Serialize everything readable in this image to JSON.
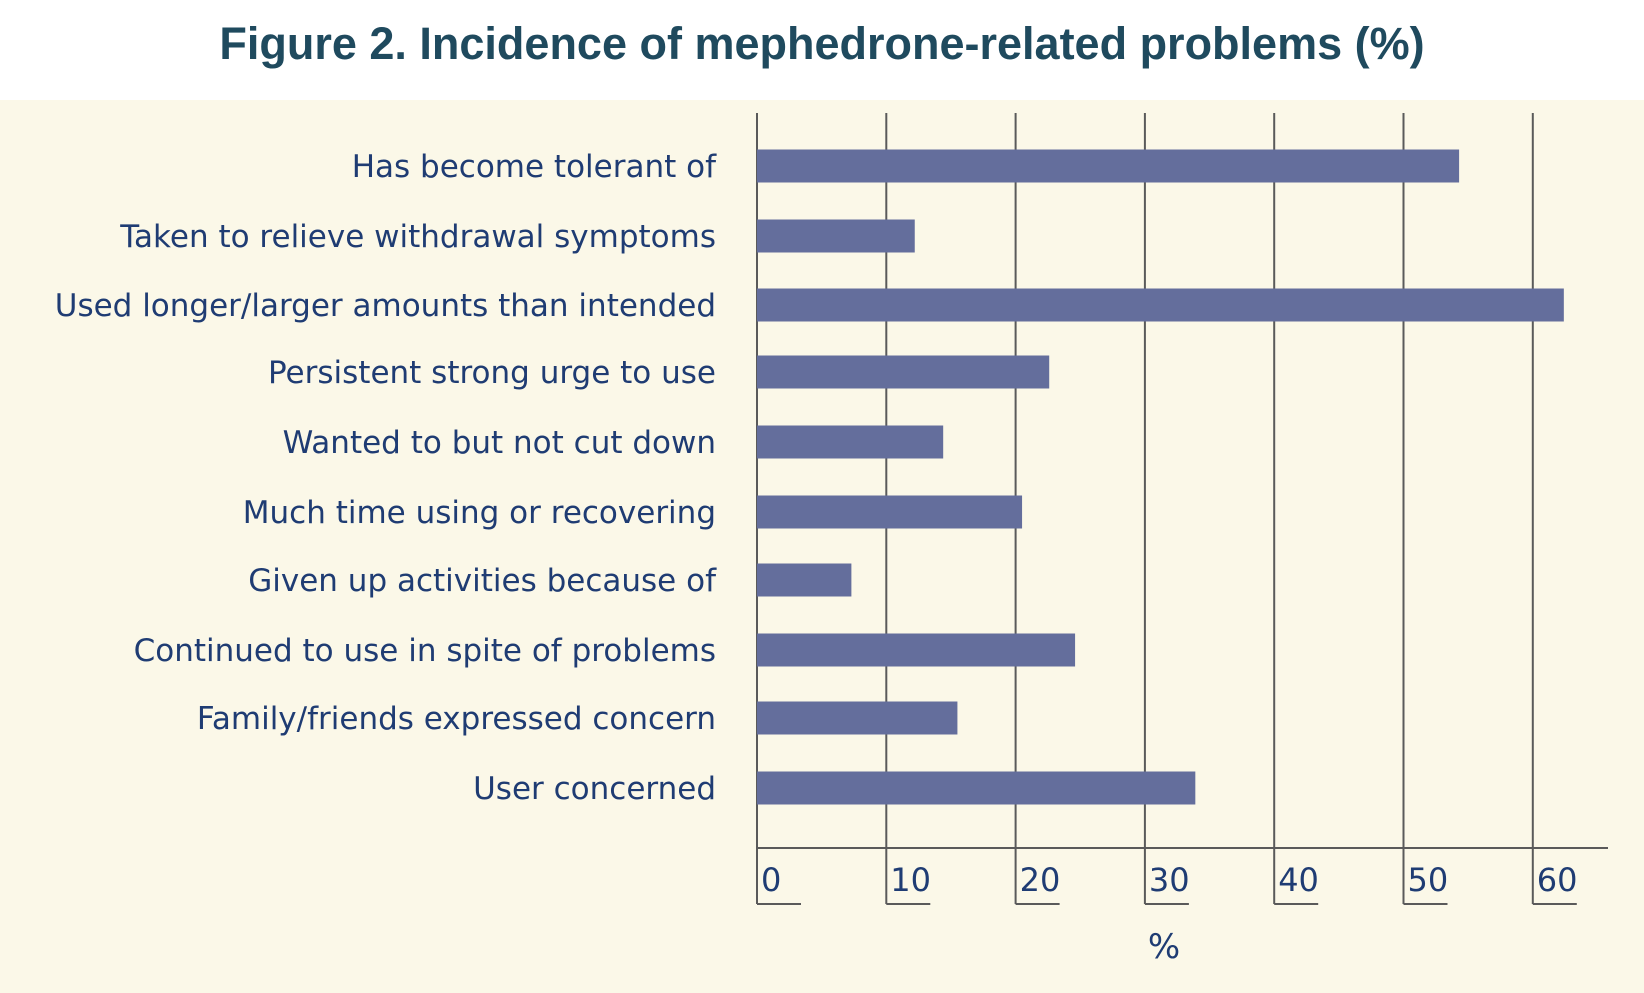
{
  "chart_data": {
    "type": "bar",
    "orientation": "horizontal",
    "title": "Figure 2. Incidence of mephedrone-related problems (%)",
    "xlabel": "%",
    "ylabel": "",
    "xlim": [
      0,
      65
    ],
    "xticks": [
      "0",
      "10",
      "20",
      "30",
      "40",
      "50",
      "60"
    ],
    "grid": true,
    "categories": [
      "Has become tolerant of",
      "Taken to relieve withdrawal symptoms",
      "Used longer/larger amounts than intended",
      "Persistent strong urge to use",
      "Wanted to but not cut down",
      "Much time using or recovering",
      "Given up activities because of",
      "Continued to use in spite of problems",
      "Family/friends expressed concern",
      "User concerned"
    ],
    "values": [
      54.3,
      12.2,
      62.4,
      22.6,
      14.4,
      20.5,
      7.3,
      24.6,
      15.5,
      33.9
    ],
    "colors": {
      "bar": "#646e9c",
      "grid": "#5a5a5a",
      "text": "#1f3c73",
      "title": "#1f4a5e",
      "panel": "#fbf8e8"
    }
  }
}
